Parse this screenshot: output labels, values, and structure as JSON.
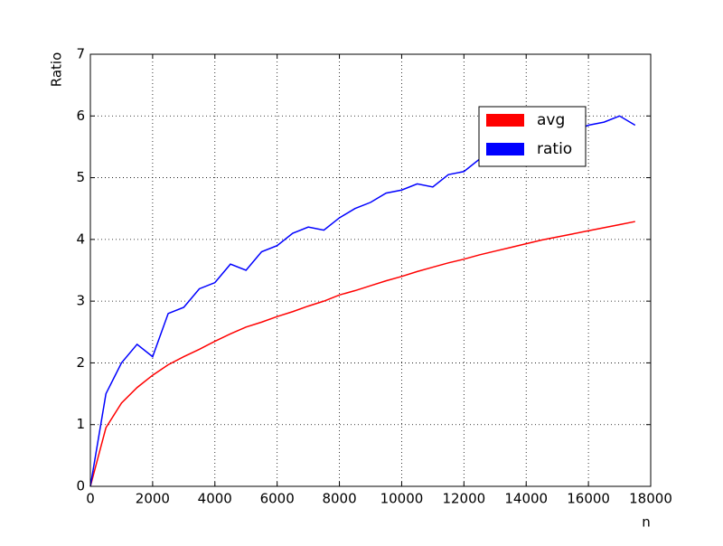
{
  "chart_data": {
    "type": "line",
    "xlabel": "n",
    "ylabel": "Ratio",
    "x": [
      0,
      500,
      1000,
      1500,
      2000,
      2500,
      3000,
      3500,
      4000,
      4500,
      5000,
      5500,
      6000,
      6500,
      7000,
      7500,
      8000,
      8500,
      9000,
      9500,
      10000,
      10500,
      11000,
      11500,
      12000,
      12500,
      13000,
      13500,
      14000,
      14500,
      15000,
      15500,
      16000,
      16500,
      17000,
      17500
    ],
    "series": [
      {
        "name": "avg",
        "color": "#ff0000",
        "values": [
          0,
          0.95,
          1.35,
          1.6,
          1.8,
          1.97,
          2.1,
          2.22,
          2.35,
          2.47,
          2.58,
          2.66,
          2.75,
          2.83,
          2.92,
          3.0,
          3.1,
          3.17,
          3.25,
          3.33,
          3.4,
          3.48,
          3.55,
          3.62,
          3.68,
          3.75,
          3.81,
          3.87,
          3.93,
          3.99,
          4.04,
          4.09,
          4.14,
          4.19,
          4.24,
          4.29
        ]
      },
      {
        "name": "ratio",
        "color": "#0000ff",
        "values": [
          0,
          1.5,
          2.0,
          2.3,
          2.1,
          2.8,
          2.9,
          3.2,
          3.3,
          3.6,
          3.5,
          3.8,
          3.9,
          4.1,
          4.2,
          4.15,
          4.35,
          4.5,
          4.6,
          4.75,
          4.8,
          4.9,
          4.85,
          5.05,
          5.1,
          5.3,
          5.25,
          5.45,
          5.5,
          5.6,
          5.7,
          5.75,
          5.85,
          5.9,
          6.0,
          5.85
        ]
      }
    ],
    "xlim": [
      0,
      18000
    ],
    "xticks": [
      0,
      2000,
      4000,
      6000,
      8000,
      10000,
      12000,
      14000,
      16000,
      18000
    ],
    "ylim": [
      0,
      7
    ],
    "yticks": [
      0,
      1,
      2,
      3,
      4,
      5,
      6,
      7
    ],
    "grid": true,
    "legend": "upper right"
  }
}
